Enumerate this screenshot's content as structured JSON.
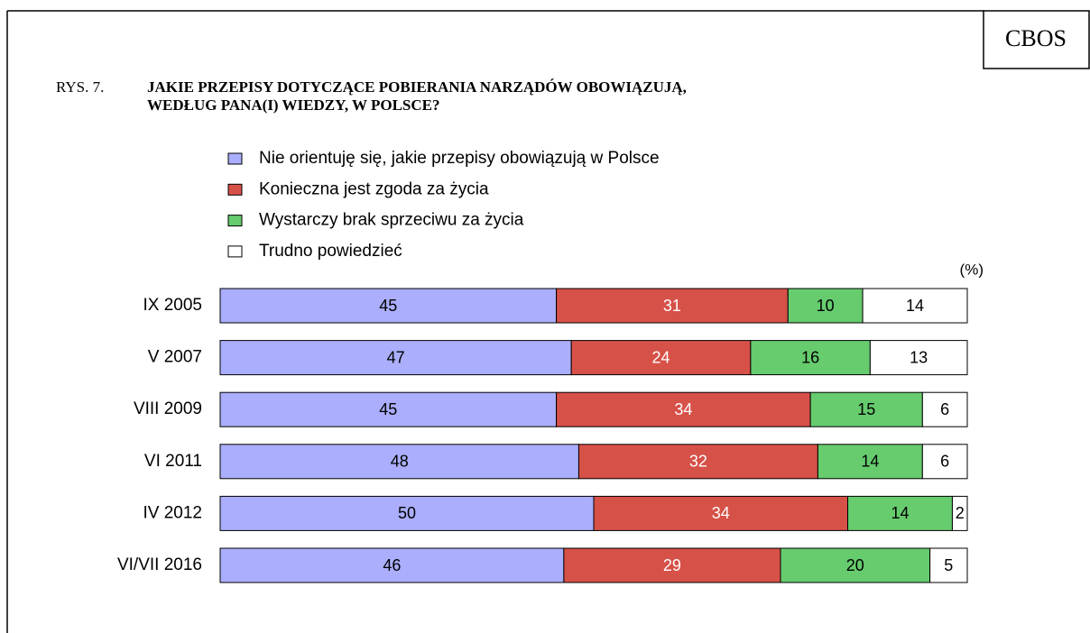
{
  "chart_data": {
    "type": "stacked_barh",
    "badge": "CBOS",
    "figure_label": "RYS. 7.",
    "title": [
      "JAKIE PRZEPISY DOTYCZĄCE POBIERANIA NARZĄDÓW OBOWIĄZUJĄ,",
      "WEDŁUG  PANA(I) WIEDZY, W POLSCE?"
    ],
    "unit_label": "(%)",
    "categories": [
      "IX 2005",
      "V 2007",
      "VIII 2009",
      "VI 2011",
      "IV 2012",
      "VI/VII 2016"
    ],
    "series": [
      {
        "name": "Nie orientuję się, jakie przepisy obowiązują w Polsce",
        "color": "#aaaefc",
        "label_color": "#000000",
        "values": [
          45,
          47,
          45,
          48,
          50,
          46
        ]
      },
      {
        "name": "Konieczna jest zgoda za życia",
        "color": "#d65148",
        "label_color": "#ffffff",
        "values": [
          31,
          24,
          34,
          32,
          34,
          29
        ]
      },
      {
        "name": "Wystarczy brak sprzeciwu za życia",
        "color": "#66cc6e",
        "label_color": "#000000",
        "values": [
          10,
          16,
          15,
          14,
          14,
          20
        ]
      },
      {
        "name": "Trudno powiedzieć",
        "color": "#ffffff",
        "label_color": "#000000",
        "values": [
          14,
          13,
          6,
          6,
          2,
          5
        ]
      }
    ],
    "xlim": [
      0,
      100
    ]
  }
}
